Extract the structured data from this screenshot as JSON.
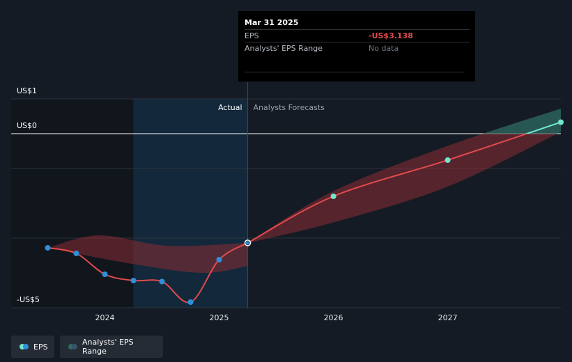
{
  "chart_data": {
    "type": "line",
    "y_ticks": [
      {
        "value": 1,
        "label": "US$1"
      },
      {
        "value": 0,
        "label": "US$0"
      },
      {
        "value": -5,
        "label": "-US$5"
      }
    ],
    "ylim": [
      -5,
      1
    ],
    "x_ticks": [
      {
        "value": 2024.0,
        "label": "2024"
      },
      {
        "value": 2025.0,
        "label": "2025"
      },
      {
        "value": 2026.0,
        "label": "2026"
      },
      {
        "value": 2027.0,
        "label": "2027"
      }
    ],
    "xlim": [
      2023.18,
      2027.99
    ],
    "divider_x": 2025.25,
    "highlight_start_x": 2024.25,
    "regions": {
      "actual": "Actual",
      "forecast": "Analysts Forecasts"
    },
    "series": [
      {
        "name": "EPS",
        "color": "#e24a4c",
        "actual": [
          {
            "x": 2023.5,
            "y": -3.28
          },
          {
            "x": 2023.75,
            "y": -3.44
          },
          {
            "x": 2024.0,
            "y": -4.04
          },
          {
            "x": 2024.25,
            "y": -4.22
          },
          {
            "x": 2024.5,
            "y": -4.25
          },
          {
            "x": 2024.75,
            "y": -4.84
          },
          {
            "x": 2025.0,
            "y": -3.62
          },
          {
            "x": 2025.25,
            "y": -3.138
          }
        ],
        "forecast": [
          {
            "x": 2025.25,
            "y": -3.138
          },
          {
            "x": 2026.0,
            "y": -1.8
          },
          {
            "x": 2027.0,
            "y": -0.76
          },
          {
            "x": 2027.99,
            "y": 0.33
          }
        ]
      }
    ],
    "range_band": {
      "name": "Analysts' EPS Range",
      "actual_upper": [
        {
          "x": 2023.5,
          "y": -3.28
        },
        {
          "x": 2023.95,
          "y": -2.92
        },
        {
          "x": 2024.55,
          "y": -3.22
        },
        {
          "x": 2025.25,
          "y": -3.14
        }
      ],
      "actual_lower": [
        {
          "x": 2023.5,
          "y": -3.28
        },
        {
          "x": 2024.2,
          "y": -3.72
        },
        {
          "x": 2024.85,
          "y": -4.0
        },
        {
          "x": 2025.25,
          "y": -3.8
        }
      ],
      "forecast_upper": [
        {
          "x": 2025.25,
          "y": -3.138
        },
        {
          "x": 2026.0,
          "y": -1.65
        },
        {
          "x": 2027.0,
          "y": -0.35
        },
        {
          "x": 2027.99,
          "y": 0.72
        }
      ],
      "forecast_lower": [
        {
          "x": 2025.25,
          "y": -3.138
        },
        {
          "x": 2026.0,
          "y": -2.55
        },
        {
          "x": 2027.0,
          "y": -1.52
        },
        {
          "x": 2027.99,
          "y": 0.05
        }
      ]
    }
  },
  "tooltip": {
    "date": "Mar 31 2025",
    "eps_label": "EPS",
    "eps_value": "-US$3.138",
    "range_label": "Analysts' EPS Range",
    "range_value": "No data"
  },
  "legend": {
    "eps": "EPS",
    "range": "Analysts' EPS Range"
  },
  "colors": {
    "eps_line": "#e24a4c",
    "eps_positive": "#6ee6cd",
    "actual_marker": "#2f8fd8",
    "band_negative": "#8a2c33",
    "band_positive": "#2f6b62",
    "highlight": "#13283b"
  }
}
